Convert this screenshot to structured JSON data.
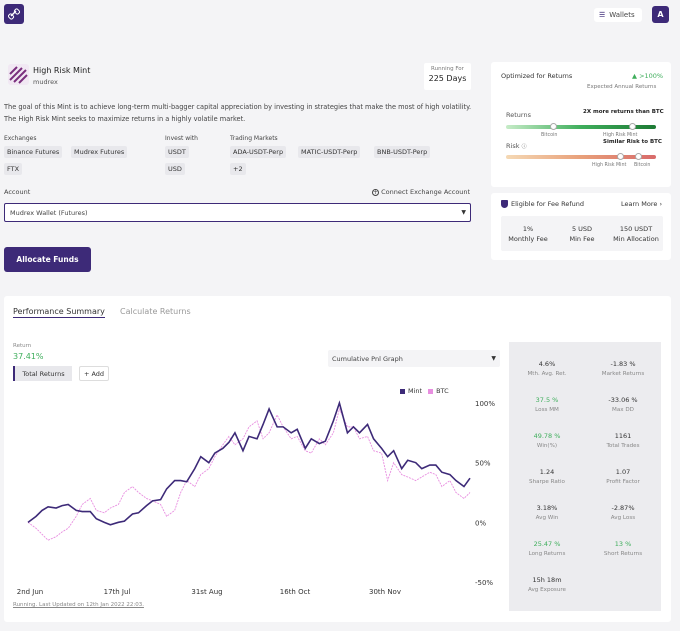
{
  "header": {
    "wallets_label": "Wallets",
    "avatar_letter": "A"
  },
  "mint": {
    "title": "High Risk Mint",
    "creator": "mudrex",
    "running_label": "Running For",
    "running_value": "225 Days",
    "description": "The goal of this Mint is to achieve long-term multi-bagger capital appreciation by investing in strategies that make the most of high volatility. The High Risk Mint seeks to maximize returns in a highly volatile market."
  },
  "details": {
    "exchanges_label": "Exchanges",
    "exchanges": [
      "Binance Futures",
      "Mudrex Futures",
      "FTX"
    ],
    "invest_label": "Invest with",
    "invest": [
      "USDT",
      "USD"
    ],
    "markets_label": "Trading Markets",
    "markets": [
      "ADA-USDT-Perp",
      "MATIC-USDT-Perp",
      "BNB-USDT-Perp",
      "+2"
    ]
  },
  "account": {
    "label": "Account",
    "connect_label": "Connect Exchange Account",
    "selected": "Mudrex Wallet (Futures)",
    "allocate_label": "Allocate Funds"
  },
  "optimized": {
    "title": "Optimized for Returns",
    "annual_value": ">100%",
    "annual_label": "Expected Annual Returns",
    "returns_label": "Returns",
    "returns_note": "2X more returns than BTC",
    "returns_left": "Bitcoin",
    "returns_right": "High Risk Mint",
    "risk_label": "Risk",
    "risk_note": "Similar Risk to BTC",
    "risk_left": "High Risk Mint",
    "risk_right": "Bitcoin"
  },
  "fees": {
    "title": "Eligible for Fee Refund",
    "learn_more": "Learn More",
    "items": [
      {
        "value": "1%",
        "label": "Monthly Fee"
      },
      {
        "value": "5 USD",
        "label": "Min Fee"
      },
      {
        "value": "150 USDT",
        "label": "Min Allocation"
      }
    ]
  },
  "performance": {
    "tab_summary": "Performance Summary",
    "tab_calculate": "Calculate Returns",
    "return_label": "Return",
    "return_value": "37.41%",
    "total_returns_btn": "Total Returns",
    "add_btn": "+ Add",
    "graph_select": "Cumulative Pnl Graph",
    "legend_mint": "Mint",
    "legend_btc": "BTC",
    "footer": "Running. Last Updated on 12th Jan 2022 22:03."
  },
  "colors": {
    "primary": "#3d2a78",
    "btc": "#e88ee0",
    "positive": "#3fae5c"
  },
  "chart_data": {
    "type": "line",
    "x_ticks": [
      "2nd Jun",
      "17th Jul",
      "31st Aug",
      "16th Oct",
      "30th Nov"
    ],
    "y_ticks": [
      "100%",
      "50%",
      "0%",
      "-50%"
    ],
    "ylim": [
      -50,
      100
    ],
    "series": [
      {
        "name": "Mint",
        "color": "#3d2a78",
        "x": [
          0,
          4,
          7,
          10,
          14,
          17,
          20,
          24,
          27,
          31,
          34,
          38,
          41,
          45,
          48,
          52,
          55,
          59,
          62,
          66,
          69,
          73,
          76,
          79,
          83,
          86,
          90,
          93,
          97,
          100,
          103,
          107,
          110,
          114,
          117,
          120,
          124,
          127,
          131,
          134,
          138,
          141,
          145,
          148,
          152,
          155,
          159,
          162,
          165,
          169,
          172,
          176,
          179,
          182,
          186,
          189,
          193,
          196,
          200,
          203,
          206,
          210,
          213,
          217,
          220
        ],
        "values": [
          0,
          5,
          10,
          13,
          12,
          14,
          15,
          10,
          9,
          9,
          3,
          0,
          -2,
          0,
          1,
          7,
          8,
          14,
          18,
          19,
          28,
          35,
          35,
          34,
          45,
          55,
          50,
          58,
          62,
          67,
          75,
          60,
          72,
          70,
          82,
          95,
          80,
          80,
          75,
          78,
          62,
          70,
          66,
          68,
          85,
          100,
          75,
          80,
          75,
          82,
          70,
          62,
          55,
          60,
          45,
          52,
          50,
          45,
          48,
          48,
          42,
          40,
          35,
          30,
          37
        ]
      },
      {
        "name": "BTC",
        "color": "#e88ee0",
        "x": [
          0,
          4,
          7,
          10,
          14,
          17,
          20,
          24,
          27,
          31,
          34,
          38,
          41,
          45,
          48,
          52,
          55,
          59,
          62,
          66,
          69,
          73,
          76,
          79,
          83,
          86,
          90,
          93,
          97,
          100,
          103,
          107,
          110,
          114,
          117,
          120,
          124,
          127,
          131,
          134,
          138,
          141,
          145,
          148,
          152,
          155,
          159,
          162,
          165,
          169,
          172,
          176,
          179,
          182,
          186,
          189,
          193,
          196,
          200,
          203,
          206,
          210,
          213,
          217,
          220
        ],
        "values": [
          0,
          -5,
          -10,
          -15,
          -12,
          -8,
          -5,
          5,
          15,
          20,
          10,
          8,
          12,
          15,
          25,
          30,
          25,
          20,
          18,
          15,
          5,
          10,
          25,
          35,
          30,
          40,
          45,
          55,
          65,
          72,
          65,
          70,
          80,
          85,
          70,
          75,
          90,
          80,
          70,
          72,
          60,
          58,
          70,
          65,
          75,
          95,
          80,
          80,
          70,
          72,
          60,
          58,
          35,
          50,
          40,
          38,
          35,
          38,
          42,
          40,
          30,
          35,
          25,
          20,
          25
        ]
      }
    ]
  },
  "stats": [
    {
      "value": "4.6%",
      "label": "Mth. Avg. Ret.",
      "green": false
    },
    {
      "value": "-1.83 %",
      "label": "Market Returns",
      "green": false
    },
    {
      "value": "37.5 %",
      "label": "Loss MM",
      "green": true
    },
    {
      "value": "-33.06 %",
      "label": "Max DD",
      "green": false
    },
    {
      "value": "49.78 %",
      "label": "Win(%)",
      "green": true
    },
    {
      "value": "1161",
      "label": "Total Trades",
      "green": false
    },
    {
      "value": "1.24",
      "label": "Sharpe Ratio",
      "green": false
    },
    {
      "value": "1.07",
      "label": "Profit Factor",
      "green": false
    },
    {
      "value": "3.18%",
      "label": "Avg Win",
      "green": false
    },
    {
      "value": "-2.87%",
      "label": "Avg Loss",
      "green": false
    },
    {
      "value": "25.47 %",
      "label": "Long Returns",
      "green": true
    },
    {
      "value": "13 %",
      "label": "Short Returns",
      "green": true
    },
    {
      "value": "15h 18m",
      "label": "Avg Exposure",
      "green": false
    }
  ]
}
